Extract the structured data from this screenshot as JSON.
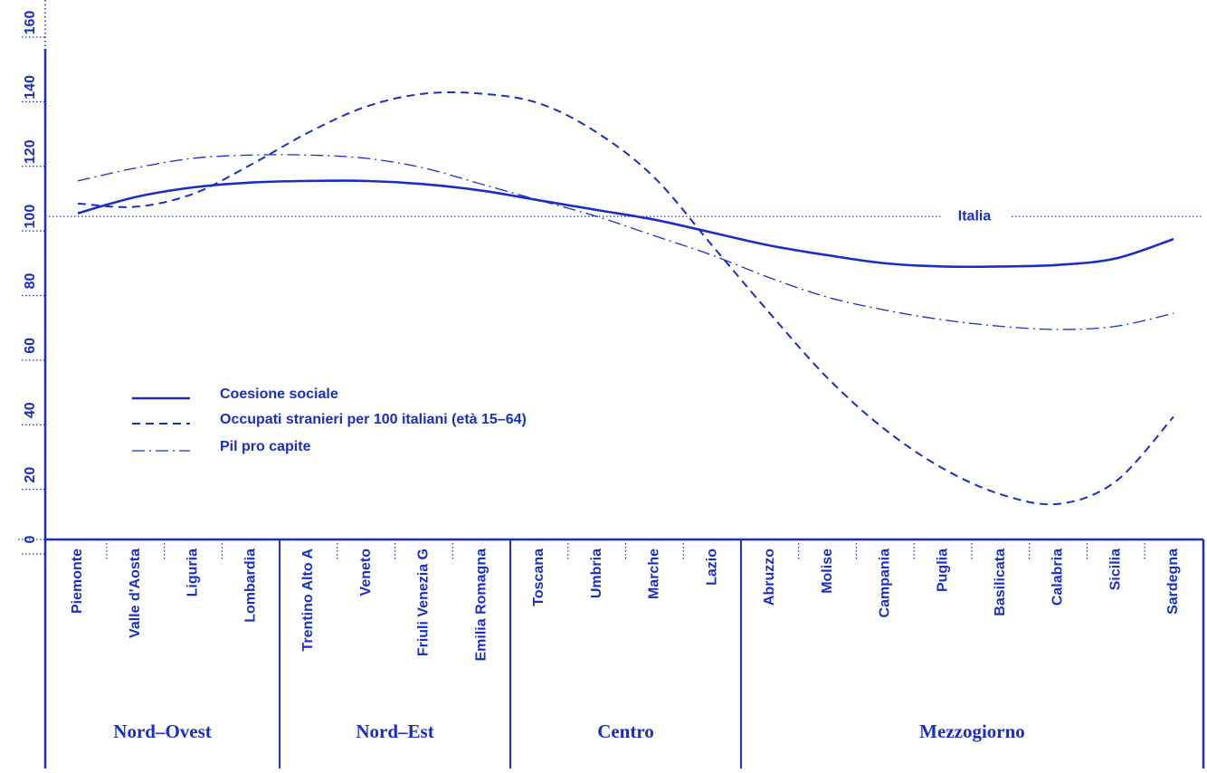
{
  "chart_data": {
    "type": "line",
    "categories": [
      "Piemonte",
      "Valle d'Aosta",
      "Liguria",
      "Lombardia",
      "Trentino Alto A",
      "Veneto",
      "Friuli Venezia G",
      "Emilia Romagna",
      "Toscana",
      "Umbria",
      "Marche",
      "Lazio",
      "Abruzzo",
      "Molise",
      "Campania",
      "Puglia",
      "Basilicata",
      "Calabria",
      "Sicilia",
      "Sardegna"
    ],
    "series": [
      {
        "name": "Coesione sociale",
        "style": "solid",
        "values": [
          101,
          106,
          109,
          110.5,
          111,
          111,
          110,
          108,
          105,
          102,
          99,
          95,
          91,
          88,
          85.5,
          84.5,
          84.5,
          85,
          87,
          93
        ]
      },
      {
        "name": "Occupati stranieri per 100 italiani (età 15–64)",
        "style": "dashed",
        "values": [
          104,
          103,
          107,
          116,
          126,
          134,
          138,
          138,
          135,
          126,
          112,
          91,
          70,
          50,
          34,
          22,
          14,
          11,
          18,
          38
        ]
      },
      {
        "name": "Pil pro capite",
        "style": "dashdot",
        "values": [
          111,
          115,
          118,
          119,
          119,
          118,
          115,
          110,
          105,
          100,
          94,
          88,
          81,
          75,
          71,
          68,
          66,
          65,
          66,
          70
        ]
      }
    ],
    "regions": [
      {
        "name": "Nord–Ovest",
        "count": 4
      },
      {
        "name": "Nord–Est",
        "count": 4
      },
      {
        "name": "Centro",
        "count": 4
      },
      {
        "name": "Mezzogiorno",
        "count": 8
      }
    ],
    "reference": {
      "label": "Italia",
      "value": 100
    },
    "yticks": [
      "0",
      "20",
      "40",
      "60",
      "80",
      "100",
      "120",
      "140",
      "160"
    ],
    "ylim": [
      0,
      160
    ],
    "legend_position": "lower-left",
    "grid": false,
    "color": "#1a2ec2"
  }
}
